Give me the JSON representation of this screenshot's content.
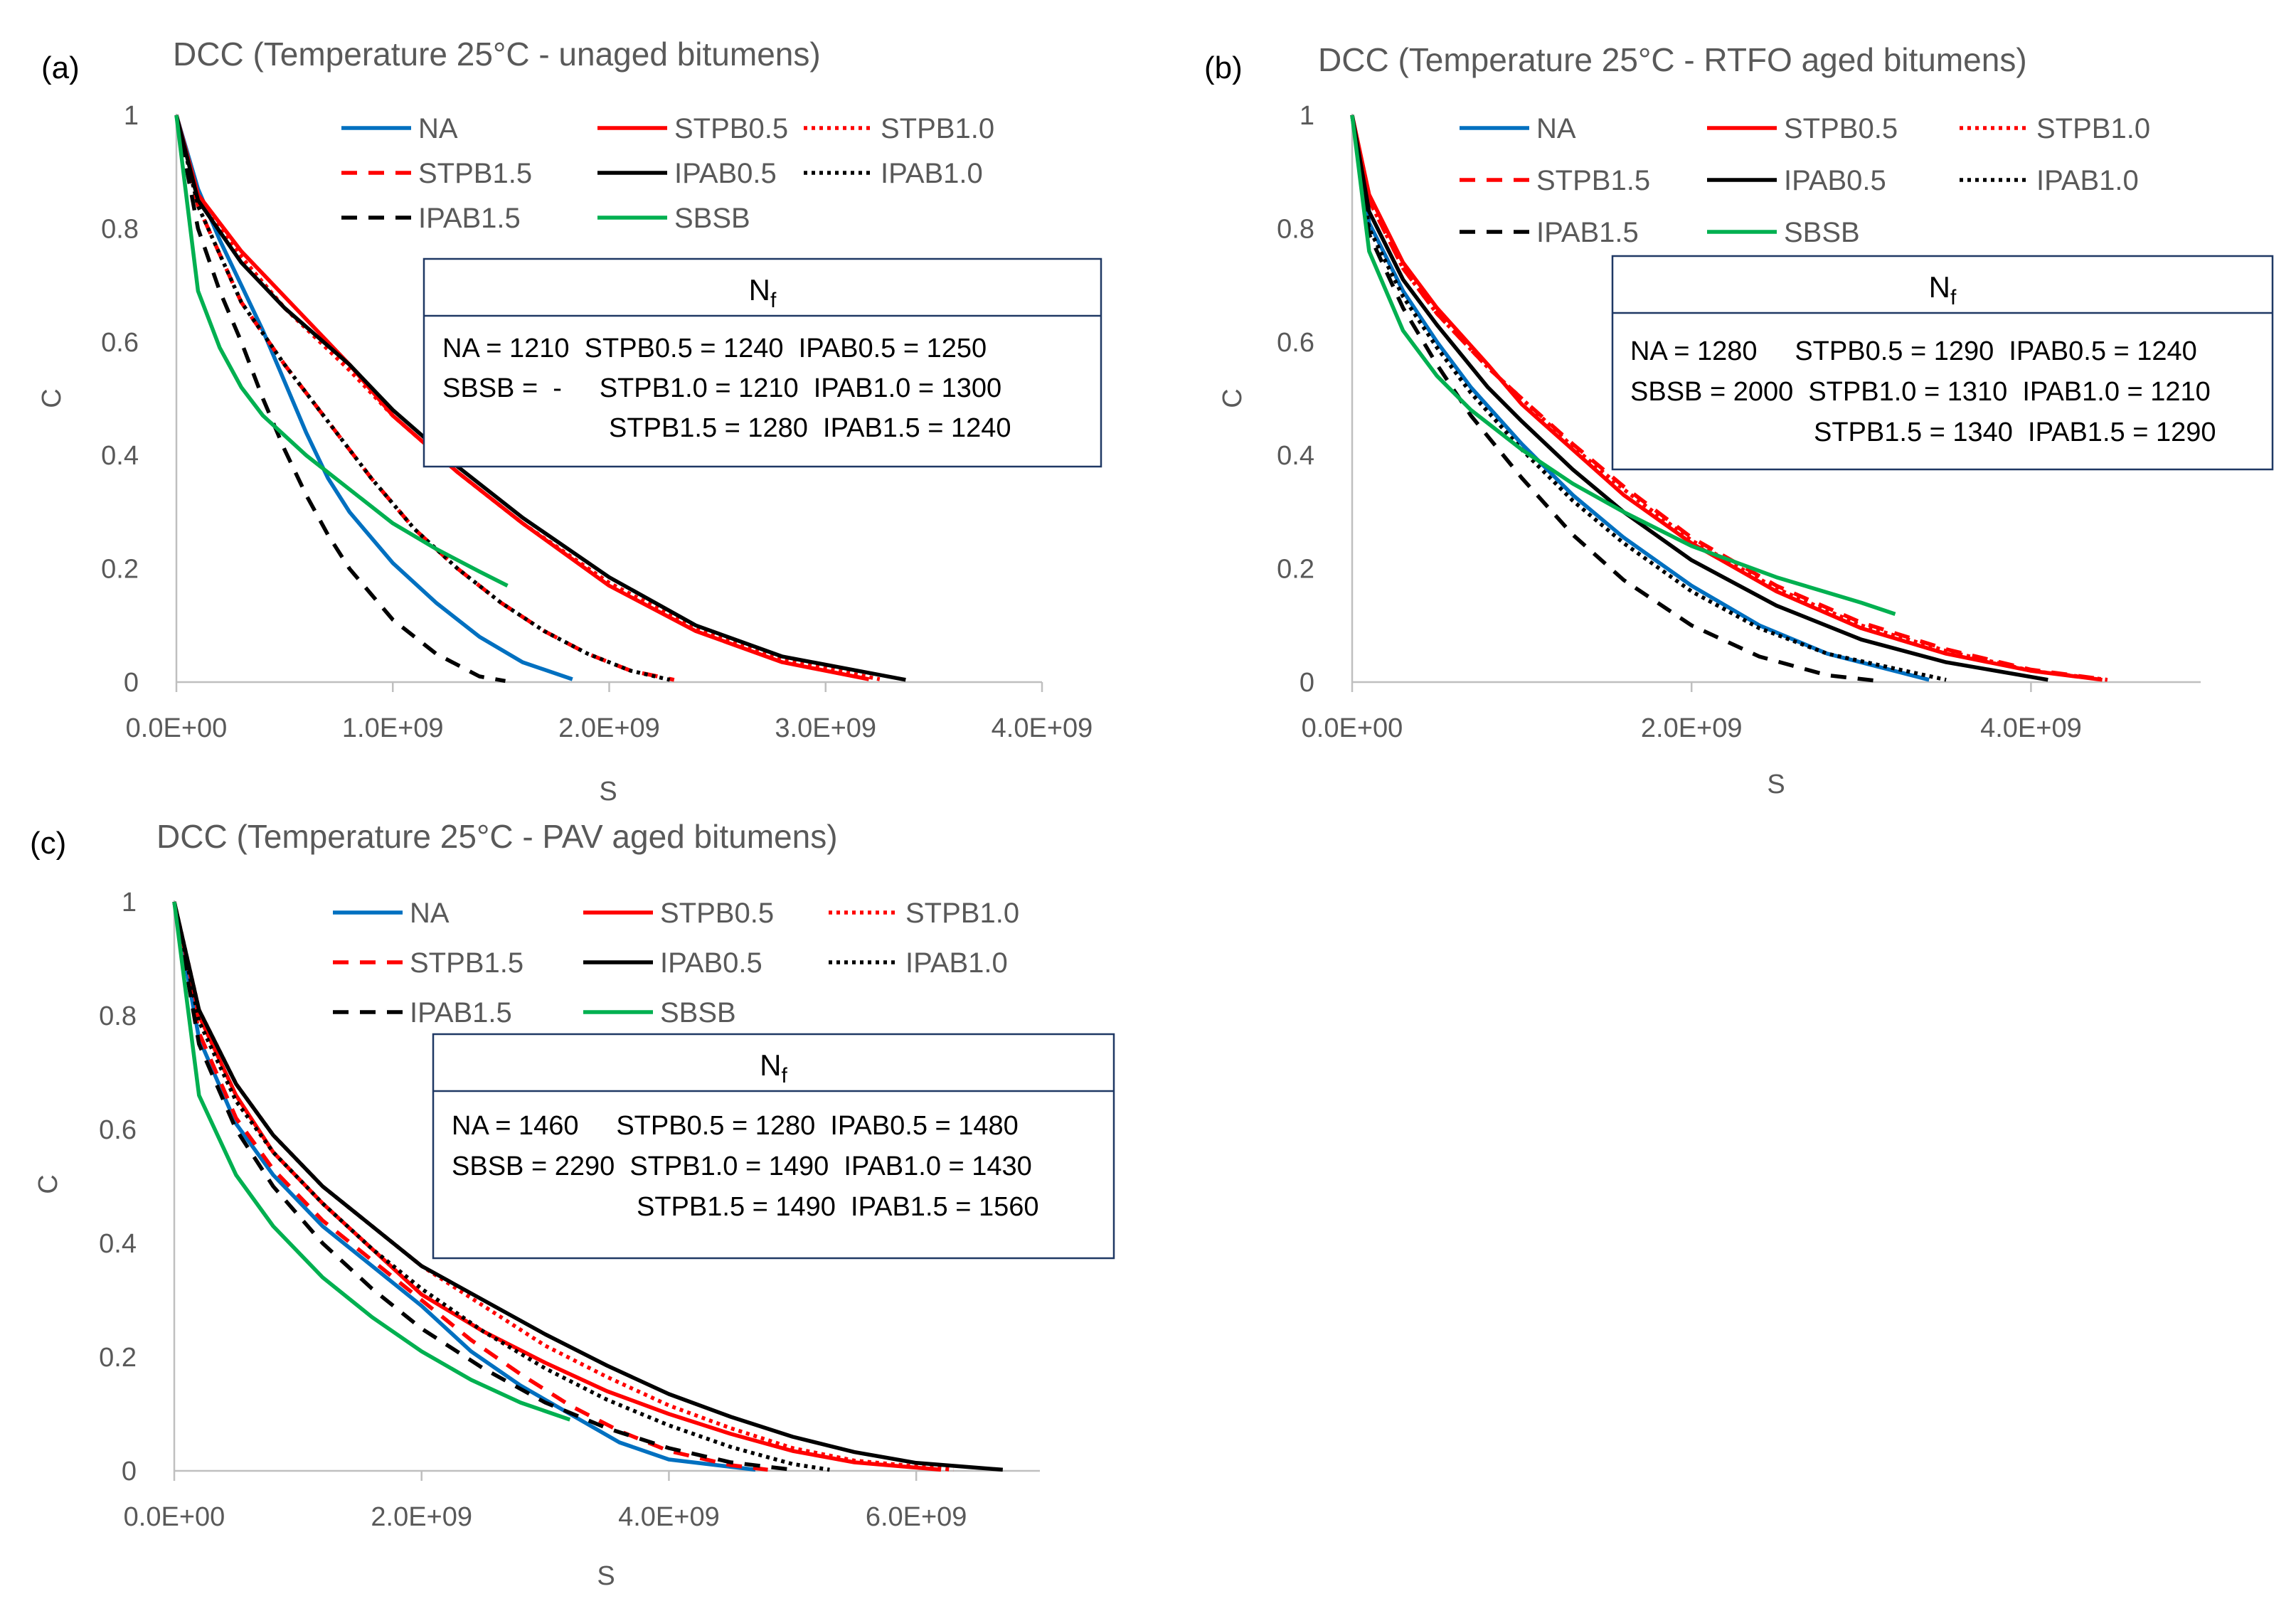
{
  "chart_data": [
    {
      "type": "line",
      "panel_label": "(a)",
      "title": "DCC (Temperature 25°C - unaged bitumens)",
      "xlabel": "S",
      "ylabel": "C",
      "xlim": [
        0,
        4000000000
      ],
      "ylim": [
        0,
        1
      ],
      "xticks": [
        0,
        1000000000,
        2000000000,
        3000000000,
        4000000000
      ],
      "xtick_labels": [
        "0.0E+00",
        "1.0E+09",
        "2.0E+09",
        "3.0E+09",
        "4.0E+09"
      ],
      "yticks": [
        0,
        0.2,
        0.4,
        0.6,
        0.8,
        1
      ],
      "ytick_labels": [
        "0",
        "0.2",
        "0.4",
        "0.6",
        "0.8",
        "1"
      ],
      "series": [
        {
          "name": "NA",
          "color": "#0070C0",
          "dash": "solid",
          "x": [
            0,
            100000000,
            200000000,
            300000000,
            400000000,
            500000000,
            600000000,
            700000000,
            800000000,
            1000000000,
            1200000000,
            1400000000,
            1600000000,
            1830000000
          ],
          "y": [
            1,
            0.87,
            0.78,
            0.7,
            0.62,
            0.53,
            0.44,
            0.36,
            0.3,
            0.21,
            0.14,
            0.08,
            0.035,
            0.005
          ]
        },
        {
          "name": "STPB0.5",
          "color": "#FF0000",
          "dash": "solid",
          "x": [
            0,
            100000000,
            300000000,
            500000000,
            800000000,
            1000000000,
            1300000000,
            1600000000,
            2000000000,
            2400000000,
            2800000000,
            3200000000
          ],
          "y": [
            1,
            0.86,
            0.76,
            0.68,
            0.56,
            0.47,
            0.37,
            0.28,
            0.17,
            0.09,
            0.035,
            0.005
          ]
        },
        {
          "name": "STPB1.0",
          "color": "#FF0000",
          "dash": "dotted",
          "x": [
            0,
            100000000,
            300000000,
            500000000,
            800000000,
            1000000000,
            1300000000,
            1600000000,
            2000000000,
            2400000000,
            2800000000,
            3250000000
          ],
          "y": [
            1,
            0.85,
            0.75,
            0.66,
            0.55,
            0.47,
            0.37,
            0.28,
            0.175,
            0.095,
            0.04,
            0.005
          ]
        },
        {
          "name": "STPB1.5",
          "color": "#FF0000",
          "dash": "dashed",
          "x": [
            0,
            100000000,
            300000000,
            500000000,
            700000000,
            900000000,
            1100000000,
            1300000000,
            1500000000,
            1700000000,
            1900000000,
            2100000000,
            2300000000
          ],
          "y": [
            1,
            0.84,
            0.67,
            0.56,
            0.46,
            0.36,
            0.27,
            0.2,
            0.14,
            0.09,
            0.05,
            0.02,
            0.004
          ]
        },
        {
          "name": "IPAB0.5",
          "color": "#000000",
          "dash": "solid",
          "x": [
            0,
            100000000,
            300000000,
            500000000,
            800000000,
            1000000000,
            1300000000,
            1600000000,
            2000000000,
            2400000000,
            2800000000,
            3370000000
          ],
          "y": [
            1,
            0.85,
            0.74,
            0.66,
            0.56,
            0.48,
            0.38,
            0.29,
            0.185,
            0.1,
            0.045,
            0.004
          ]
        },
        {
          "name": "IPAB1.0",
          "color": "#000000",
          "dash": "dotted",
          "x": [
            0,
            100000000,
            300000000,
            500000000,
            700000000,
            900000000,
            1100000000,
            1300000000,
            1500000000,
            1700000000,
            1900000000,
            2100000000,
            2280000000
          ],
          "y": [
            1,
            0.84,
            0.67,
            0.56,
            0.46,
            0.36,
            0.27,
            0.2,
            0.14,
            0.09,
            0.05,
            0.02,
            0.004
          ]
        },
        {
          "name": "IPAB1.5",
          "color": "#000000",
          "dash": "dashed",
          "x": [
            0,
            100000000,
            200000000,
            300000000,
            400000000,
            500000000,
            600000000,
            700000000,
            800000000,
            1000000000,
            1200000000,
            1400000000,
            1520000000
          ],
          "y": [
            1,
            0.8,
            0.69,
            0.6,
            0.5,
            0.41,
            0.33,
            0.26,
            0.2,
            0.11,
            0.05,
            0.01,
            0.002
          ]
        },
        {
          "name": "SBSB",
          "color": "#00B050",
          "dash": "solid",
          "x": [
            0,
            100000000,
            200000000,
            300000000,
            400000000,
            600000000,
            800000000,
            1000000000,
            1200000000,
            1400000000,
            1530000000
          ],
          "y": [
            1,
            0.69,
            0.59,
            0.52,
            0.47,
            0.4,
            0.34,
            0.28,
            0.235,
            0.195,
            0.17
          ]
        }
      ],
      "legend": {
        "position": "top-center",
        "columns": 3
      },
      "annotation": {
        "title_main": "N",
        "title_sub": "f",
        "lines": [
          "NA = 1210  STPB0.5 = 1240  IPAB0.5 = 1250",
          "SBSB =  -     STPB1.0 = 1210  IPAB1.0 = 1300",
          "STPB1.5 = 1280  IPAB1.5 = 1240"
        ]
      }
    },
    {
      "type": "line",
      "panel_label": "(b)",
      "title": "DCC (Temperature 25°C - RTFO aged bitumens)",
      "xlabel": "S",
      "ylabel": "C",
      "xlim": [
        0,
        5000000000
      ],
      "ylim": [
        0,
        1
      ],
      "xticks": [
        0,
        2000000000,
        4000000000
      ],
      "xtick_labels": [
        "0.0E+00",
        "2.0E+09",
        "4.0E+09"
      ],
      "yticks": [
        0,
        0.2,
        0.4,
        0.6,
        0.8,
        1
      ],
      "ytick_labels": [
        "0",
        "0.2",
        "0.4",
        "0.6",
        "0.8",
        "1"
      ],
      "series": [
        {
          "name": "NA",
          "color": "#0070C0",
          "dash": "solid",
          "x": [
            0,
            100000000,
            300000000,
            500000000,
            700000000,
            1000000000,
            1300000000,
            1600000000,
            2000000000,
            2400000000,
            2800000000,
            3400000000
          ],
          "y": [
            1,
            0.81,
            0.69,
            0.6,
            0.52,
            0.42,
            0.33,
            0.255,
            0.17,
            0.1,
            0.05,
            0.004
          ]
        },
        {
          "name": "STPB0.5",
          "color": "#FF0000",
          "dash": "solid",
          "x": [
            0,
            100000000,
            300000000,
            500000000,
            800000000,
            1000000000,
            1300000000,
            1600000000,
            2000000000,
            2500000000,
            3000000000,
            3500000000,
            4000000000,
            4420000000
          ],
          "y": [
            1,
            0.86,
            0.74,
            0.66,
            0.56,
            0.49,
            0.41,
            0.33,
            0.245,
            0.16,
            0.095,
            0.05,
            0.02,
            0.004
          ]
        },
        {
          "name": "STPB1.0",
          "color": "#FF0000",
          "dash": "dotted",
          "x": [
            0,
            100000000,
            300000000,
            500000000,
            800000000,
            1000000000,
            1300000000,
            1600000000,
            2000000000,
            2500000000,
            3000000000,
            3500000000,
            4000000000,
            4450000000
          ],
          "y": [
            1,
            0.85,
            0.73,
            0.65,
            0.555,
            0.5,
            0.415,
            0.34,
            0.25,
            0.165,
            0.1,
            0.055,
            0.02,
            0.004
          ]
        },
        {
          "name": "STPB1.5",
          "color": "#FF0000",
          "dash": "dashed",
          "x": [
            0,
            100000000,
            300000000,
            500000000,
            800000000,
            1000000000,
            1300000000,
            1600000000,
            2000000000,
            2500000000,
            3000000000,
            3500000000,
            4000000000,
            4450000000
          ],
          "y": [
            1,
            0.85,
            0.73,
            0.65,
            0.555,
            0.5,
            0.42,
            0.345,
            0.255,
            0.17,
            0.105,
            0.058,
            0.022,
            0.004
          ]
        },
        {
          "name": "IPAB0.5",
          "color": "#000000",
          "dash": "solid",
          "x": [
            0,
            100000000,
            300000000,
            500000000,
            800000000,
            1000000000,
            1300000000,
            1600000000,
            2000000000,
            2500000000,
            3000000000,
            3500000000,
            4100000000
          ],
          "y": [
            1,
            0.83,
            0.71,
            0.63,
            0.52,
            0.46,
            0.375,
            0.3,
            0.215,
            0.135,
            0.075,
            0.035,
            0.004
          ]
        },
        {
          "name": "IPAB1.0",
          "color": "#000000",
          "dash": "dotted",
          "x": [
            0,
            100000000,
            300000000,
            500000000,
            700000000,
            1000000000,
            1300000000,
            1600000000,
            2000000000,
            2400000000,
            2800000000,
            3500000000
          ],
          "y": [
            1,
            0.8,
            0.68,
            0.59,
            0.51,
            0.41,
            0.32,
            0.245,
            0.16,
            0.095,
            0.05,
            0.004
          ]
        },
        {
          "name": "IPAB1.5",
          "color": "#000000",
          "dash": "dashed",
          "x": [
            0,
            100000000,
            300000000,
            500000000,
            700000000,
            1000000000,
            1300000000,
            1600000000,
            2000000000,
            2400000000,
            2800000000,
            3100000000
          ],
          "y": [
            1,
            0.79,
            0.66,
            0.56,
            0.47,
            0.36,
            0.26,
            0.18,
            0.1,
            0.045,
            0.012,
            0.002
          ]
        },
        {
          "name": "SBSB",
          "color": "#00B050",
          "dash": "solid",
          "x": [
            0,
            100000000,
            300000000,
            500000000,
            700000000,
            1000000000,
            1300000000,
            1600000000,
            2000000000,
            2500000000,
            3000000000,
            3200000000
          ],
          "y": [
            1,
            0.76,
            0.62,
            0.54,
            0.48,
            0.41,
            0.35,
            0.3,
            0.24,
            0.185,
            0.14,
            0.12
          ]
        }
      ],
      "legend": {
        "position": "top-center",
        "columns": 3
      },
      "annotation": {
        "title_main": "N",
        "title_sub": "f",
        "lines": [
          "NA = 1280     STPB0.5 = 1290  IPAB0.5 = 1240",
          "SBSB = 2000  STPB1.0 = 1310  IPAB1.0 = 1210",
          "STPB1.5 = 1340  IPAB1.5 = 1290"
        ]
      }
    },
    {
      "type": "line",
      "panel_label": "(c)",
      "title": "DCC (Temperature 25°C - PAV aged bitumens)",
      "xlabel": "S",
      "ylabel": "C",
      "xlim": [
        0,
        7000000000
      ],
      "ylim": [
        0,
        1
      ],
      "xticks": [
        0,
        2000000000,
        4000000000,
        6000000000
      ],
      "xtick_labels": [
        "0.0E+00",
        "2.0E+09",
        "4.0E+09",
        "6.0E+09"
      ],
      "yticks": [
        0,
        0.2,
        0.4,
        0.6,
        0.8,
        1
      ],
      "ytick_labels": [
        "0",
        "0.2",
        "0.4",
        "0.6",
        "0.8",
        "1"
      ],
      "series": [
        {
          "name": "NA",
          "color": "#0070C0",
          "dash": "solid",
          "x": [
            0,
            200000000,
            500000000,
            800000000,
            1200000000,
            1600000000,
            2000000000,
            2400000000,
            2800000000,
            3200000000,
            3600000000,
            4000000000,
            4700000000
          ],
          "y": [
            1,
            0.76,
            0.61,
            0.52,
            0.43,
            0.36,
            0.29,
            0.21,
            0.15,
            0.1,
            0.05,
            0.02,
            0.002
          ]
        },
        {
          "name": "STPB0.5",
          "color": "#FF0000",
          "dash": "solid",
          "x": [
            0,
            200000000,
            500000000,
            800000000,
            1200000000,
            1600000000,
            2000000000,
            2500000000,
            3000000000,
            3500000000,
            4000000000,
            4500000000,
            5000000000,
            5500000000,
            6200000000
          ],
          "y": [
            1,
            0.8,
            0.66,
            0.56,
            0.47,
            0.39,
            0.31,
            0.245,
            0.19,
            0.14,
            0.1,
            0.065,
            0.035,
            0.015,
            0.002
          ]
        },
        {
          "name": "STPB1.0",
          "color": "#FF0000",
          "dash": "dotted",
          "x": [
            0,
            200000000,
            500000000,
            800000000,
            1200000000,
            1600000000,
            2000000000,
            2500000000,
            3000000000,
            3500000000,
            4000000000,
            4500000000,
            5000000000,
            5500000000,
            6300000000
          ],
          "y": [
            1,
            0.81,
            0.68,
            0.59,
            0.5,
            0.43,
            0.36,
            0.29,
            0.22,
            0.165,
            0.115,
            0.075,
            0.04,
            0.018,
            0.002
          ]
        },
        {
          "name": "STPB1.5",
          "color": "#FF0000",
          "dash": "dashed",
          "x": [
            0,
            200000000,
            500000000,
            800000000,
            1200000000,
            1600000000,
            2000000000,
            2400000000,
            2800000000,
            3200000000,
            3600000000,
            4000000000,
            4500000000,
            4800000000
          ],
          "y": [
            1,
            0.77,
            0.62,
            0.53,
            0.44,
            0.37,
            0.3,
            0.23,
            0.17,
            0.115,
            0.07,
            0.035,
            0.01,
            0.002
          ]
        },
        {
          "name": "IPAB0.5",
          "color": "#000000",
          "dash": "solid",
          "x": [
            0,
            200000000,
            500000000,
            800000000,
            1200000000,
            1600000000,
            2000000000,
            2500000000,
            3000000000,
            3500000000,
            4000000000,
            4500000000,
            5000000000,
            5500000000,
            6000000000,
            6700000000
          ],
          "y": [
            1,
            0.81,
            0.68,
            0.59,
            0.5,
            0.43,
            0.36,
            0.3,
            0.24,
            0.185,
            0.135,
            0.095,
            0.06,
            0.033,
            0.014,
            0.002
          ]
        },
        {
          "name": "IPAB1.0",
          "color": "#000000",
          "dash": "dotted",
          "x": [
            0,
            200000000,
            500000000,
            800000000,
            1200000000,
            1600000000,
            2000000000,
            2500000000,
            3000000000,
            3500000000,
            4000000000,
            4500000000,
            5000000000,
            5300000000
          ],
          "y": [
            1,
            0.79,
            0.65,
            0.56,
            0.47,
            0.39,
            0.32,
            0.245,
            0.18,
            0.125,
            0.08,
            0.042,
            0.012,
            0.002
          ]
        },
        {
          "name": "IPAB1.5",
          "color": "#000000",
          "dash": "dashed",
          "x": [
            0,
            200000000,
            500000000,
            800000000,
            1200000000,
            1600000000,
            2000000000,
            2500000000,
            3000000000,
            3500000000,
            4000000000,
            4500000000,
            5000000000
          ],
          "y": [
            1,
            0.75,
            0.6,
            0.5,
            0.4,
            0.32,
            0.25,
            0.18,
            0.12,
            0.075,
            0.04,
            0.015,
            0.002
          ]
        },
        {
          "name": "SBSB",
          "color": "#00B050",
          "dash": "solid",
          "x": [
            0,
            200000000,
            500000000,
            800000000,
            1200000000,
            1600000000,
            2000000000,
            2400000000,
            2800000000,
            3200000000
          ],
          "y": [
            1,
            0.66,
            0.52,
            0.43,
            0.34,
            0.27,
            0.21,
            0.16,
            0.12,
            0.09
          ]
        }
      ],
      "legend": {
        "position": "top-center",
        "columns": 3
      },
      "annotation": {
        "title_main": "N",
        "title_sub": "f",
        "lines": [
          "NA = 1460     STPB0.5 = 1280  IPAB0.5 = 1480",
          "SBSB = 2290  STPB1.0 = 1490  IPAB1.0 = 1430",
          "STPB1.5 = 1490  IPAB1.5 = 1560"
        ]
      }
    }
  ]
}
